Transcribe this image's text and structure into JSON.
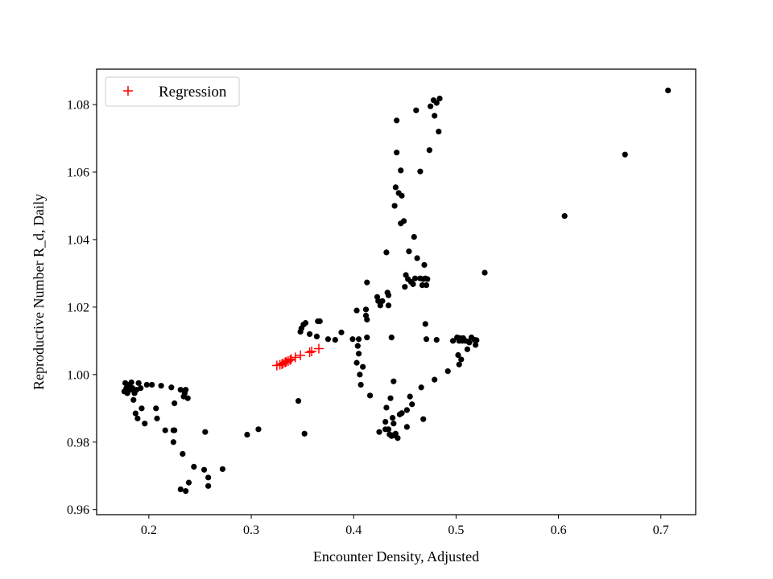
{
  "chart_data": {
    "type": "scatter",
    "title": "",
    "xlabel": "Encounter Density, Adjusted",
    "ylabel": "Reproductive Number R_d, Daily",
    "xlim": [
      0.149,
      0.734
    ],
    "ylim": [
      0.9585,
      1.0905
    ],
    "xticks": [
      0.2,
      0.3,
      0.4,
      0.5,
      0.6,
      0.7
    ],
    "xtick_labels": [
      "0.2",
      "0.3",
      "0.4",
      "0.5",
      "0.6",
      "0.7"
    ],
    "yticks": [
      0.96,
      0.98,
      1.0,
      1.02,
      1.04,
      1.06,
      1.08
    ],
    "ytick_labels": [
      "0.96",
      "0.98",
      "1.00",
      "1.02",
      "1.04",
      "1.06",
      "1.08"
    ],
    "grid": false,
    "legend_position": "top-left",
    "colors": {
      "observed": "#000000",
      "regression": "#ff0000"
    },
    "series": [
      {
        "marker": "dot",
        "color": "#000000",
        "points": [
          [
            0.176,
            0.995
          ],
          [
            0.177,
            0.9975
          ],
          [
            0.178,
            0.996
          ],
          [
            0.179,
            0.9945
          ],
          [
            0.181,
            0.997
          ],
          [
            0.182,
            0.9955
          ],
          [
            0.183,
            0.9977
          ],
          [
            0.184,
            0.996
          ],
          [
            0.185,
            0.9925
          ],
          [
            0.186,
            0.9945
          ],
          [
            0.187,
            0.9885
          ],
          [
            0.188,
            0.9955
          ],
          [
            0.189,
            0.987
          ],
          [
            0.19,
            0.9975
          ],
          [
            0.192,
            0.996
          ],
          [
            0.193,
            0.99
          ],
          [
            0.196,
            0.9855
          ],
          [
            0.198,
            0.997
          ],
          [
            0.203,
            0.997
          ],
          [
            0.207,
            0.99
          ],
          [
            0.208,
            0.987
          ],
          [
            0.212,
            0.9967
          ],
          [
            0.216,
            0.9835
          ],
          [
            0.222,
            0.9962
          ],
          [
            0.224,
            0.9835
          ],
          [
            0.224,
            0.98
          ],
          [
            0.225,
            0.9915
          ],
          [
            0.225,
            0.9835
          ],
          [
            0.231,
            0.9955
          ],
          [
            0.231,
            0.966
          ],
          [
            0.233,
            0.9765
          ],
          [
            0.234,
            0.9935
          ],
          [
            0.235,
            0.9945
          ],
          [
            0.236,
            0.9955
          ],
          [
            0.236,
            0.9655
          ],
          [
            0.238,
            0.993
          ],
          [
            0.239,
            0.968
          ],
          [
            0.244,
            0.9727
          ],
          [
            0.254,
            0.9718
          ],
          [
            0.255,
            0.983
          ],
          [
            0.258,
            0.9695
          ],
          [
            0.258,
            0.967
          ],
          [
            0.272,
            0.972
          ],
          [
            0.296,
            0.9822
          ],
          [
            0.307,
            0.9838
          ],
          [
            0.346,
            0.9922
          ],
          [
            0.348,
            1.0127
          ],
          [
            0.349,
            1.0137
          ],
          [
            0.351,
            1.0148
          ],
          [
            0.352,
            0.9825
          ],
          [
            0.353,
            1.0153
          ],
          [
            0.357,
            1.012
          ],
          [
            0.364,
            1.0113
          ],
          [
            0.365,
            1.0158
          ],
          [
            0.367,
            1.0158
          ],
          [
            0.375,
            1.0105
          ],
          [
            0.382,
            1.0103
          ],
          [
            0.388,
            1.0125
          ],
          [
            0.399,
            1.0105
          ],
          [
            0.403,
            1.019
          ],
          [
            0.403,
            1.0035
          ],
          [
            0.404,
            1.0085
          ],
          [
            0.405,
            1.0062
          ],
          [
            0.405,
            1.0105
          ],
          [
            0.406,
            1.0
          ],
          [
            0.407,
            0.997
          ],
          [
            0.409,
            1.0023
          ],
          [
            0.412,
            1.0193
          ],
          [
            0.412,
            1.0175
          ],
          [
            0.413,
            1.0163
          ],
          [
            0.413,
            1.011
          ],
          [
            0.413,
            1.0273
          ],
          [
            0.416,
            0.9938
          ],
          [
            0.423,
            1.023
          ],
          [
            0.424,
            1.0218
          ],
          [
            0.425,
            0.983
          ],
          [
            0.426,
            1.0205
          ],
          [
            0.428,
            1.0218
          ],
          [
            0.431,
            0.9838
          ],
          [
            0.431,
            0.986
          ],
          [
            0.432,
            1.0362
          ],
          [
            0.432,
            0.9902
          ],
          [
            0.433,
            1.0243
          ],
          [
            0.434,
            1.0235
          ],
          [
            0.434,
            1.0205
          ],
          [
            0.434,
            0.9838
          ],
          [
            0.435,
            0.9823
          ],
          [
            0.436,
            0.993
          ],
          [
            0.437,
            0.9818
          ],
          [
            0.437,
            1.011
          ],
          [
            0.438,
            0.982
          ],
          [
            0.438,
            0.9872
          ],
          [
            0.439,
            0.998
          ],
          [
            0.439,
            0.9855
          ],
          [
            0.44,
            1.05
          ],
          [
            0.44,
            0.982
          ],
          [
            0.441,
            0.9825
          ],
          [
            0.441,
            1.0555
          ],
          [
            0.442,
            1.0753
          ],
          [
            0.442,
            1.0658
          ],
          [
            0.443,
            0.9812
          ],
          [
            0.444,
            1.0538
          ],
          [
            0.445,
            0.9882
          ],
          [
            0.446,
            1.0605
          ],
          [
            0.446,
            1.0448
          ],
          [
            0.447,
            1.053
          ],
          [
            0.447,
            0.9886
          ],
          [
            0.449,
            1.0455
          ],
          [
            0.45,
            1.026
          ],
          [
            0.451,
            1.0295
          ],
          [
            0.452,
            0.9845
          ],
          [
            0.452,
            0.9895
          ],
          [
            0.453,
            1.0283
          ],
          [
            0.454,
            1.0365
          ],
          [
            0.455,
            0.9935
          ],
          [
            0.456,
            1.0275
          ],
          [
            0.457,
            0.9912
          ],
          [
            0.458,
            1.0268
          ],
          [
            0.459,
            1.0408
          ],
          [
            0.46,
            1.0285
          ],
          [
            0.461,
            1.0783
          ],
          [
            0.462,
            1.0345
          ],
          [
            0.465,
            1.0602
          ],
          [
            0.465,
            1.0285
          ],
          [
            0.466,
            0.9962
          ],
          [
            0.467,
            1.0265
          ],
          [
            0.468,
            1.0283
          ],
          [
            0.468,
            0.9868
          ],
          [
            0.469,
            1.0325
          ],
          [
            0.47,
            1.0285
          ],
          [
            0.47,
            1.015
          ],
          [
            0.471,
            1.0265
          ],
          [
            0.471,
            1.0105
          ],
          [
            0.472,
            1.0283
          ],
          [
            0.474,
            1.0665
          ],
          [
            0.475,
            1.0795
          ],
          [
            0.478,
            1.0813
          ],
          [
            0.479,
            1.0767
          ],
          [
            0.479,
            0.9985
          ],
          [
            0.481,
            1.0805
          ],
          [
            0.481,
            1.0103
          ],
          [
            0.483,
            1.072
          ],
          [
            0.484,
            1.0818
          ],
          [
            0.492,
            1.001
          ],
          [
            0.497,
            1.01
          ],
          [
            0.501,
            1.011
          ],
          [
            0.502,
            1.0058
          ],
          [
            0.503,
            1.01
          ],
          [
            0.503,
            1.003
          ],
          [
            0.504,
            1.0108
          ],
          [
            0.505,
            1.0045
          ],
          [
            0.506,
            1.01
          ],
          [
            0.507,
            1.0108
          ],
          [
            0.509,
            1.01
          ],
          [
            0.511,
            1.0075
          ],
          [
            0.512,
            1.0098
          ],
          [
            0.513,
            1.0095
          ],
          [
            0.515,
            1.011
          ],
          [
            0.518,
            1.0103
          ],
          [
            0.519,
            1.0088
          ],
          [
            0.52,
            1.0102
          ],
          [
            0.528,
            1.0302
          ],
          [
            0.606,
            1.047
          ],
          [
            0.665,
            1.0652
          ],
          [
            0.707,
            1.0842
          ]
        ]
      },
      {
        "name": "Regression",
        "marker": "plus",
        "color": "#ff0000",
        "points": [
          [
            0.325,
            1.0027
          ],
          [
            0.328,
            1.0029
          ],
          [
            0.33,
            1.0031
          ],
          [
            0.331,
            1.0033
          ],
          [
            0.333,
            1.0036
          ],
          [
            0.334,
            1.0038
          ],
          [
            0.336,
            1.004
          ],
          [
            0.338,
            1.0043
          ],
          [
            0.339,
            1.0046
          ],
          [
            0.343,
            1.0051
          ],
          [
            0.348,
            1.0057
          ],
          [
            0.357,
            1.0066
          ],
          [
            0.359,
            1.0069
          ],
          [
            0.366,
            1.0077
          ]
        ]
      }
    ]
  }
}
